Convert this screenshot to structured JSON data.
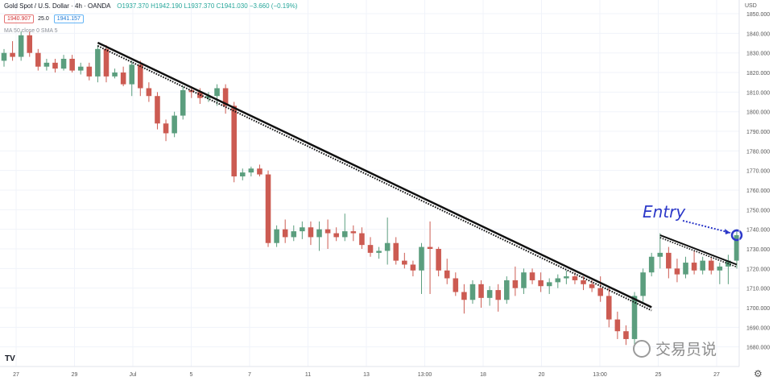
{
  "header": {
    "title": "Gold Spot / U.S. Dollar · 4h · OANDA",
    "ohlc": "O1937.370 H1942.190 L1937.370 C1941.030 −3.660 (−0.19%)",
    "sell_price": "1940.907",
    "spread": "25.0",
    "buy_price": "1941.157",
    "indicator": "MA 50 close 0 SMA 5"
  },
  "currency": "USD",
  "watermark": "交易员说",
  "annotation": "Entry",
  "colors": {
    "up": "#5b9e7e",
    "down": "#cc5b52",
    "trend": "#111111",
    "entry": "#2d39c9"
  },
  "chart_data": {
    "type": "candlestick",
    "ylim": [
      1670,
      1857
    ],
    "y_ticks": [
      "1850.000",
      "1840.000",
      "1830.000",
      "1820.000",
      "1810.000",
      "1800.000",
      "1790.000",
      "1780.000",
      "1770.000",
      "1760.000",
      "1750.000",
      "1740.000",
      "1730.000",
      "1720.000",
      "1710.000",
      "1700.000",
      "1690.000",
      "1680.000"
    ],
    "x_ticks": [
      "27",
      "29",
      "Jul",
      "5",
      "7",
      "11",
      "13",
      "13:00",
      "18",
      "20",
      "13:00",
      "25",
      "27"
    ],
    "candles": [
      [
        1826,
        1832,
        1823,
        1830
      ],
      [
        1830,
        1836,
        1826,
        1828
      ],
      [
        1828,
        1841,
        1826,
        1839
      ],
      [
        1839,
        1841,
        1828,
        1830
      ],
      [
        1830,
        1832,
        1821,
        1823
      ],
      [
        1823,
        1827,
        1821,
        1825
      ],
      [
        1825,
        1827,
        1820,
        1822
      ],
      [
        1822,
        1829,
        1821,
        1827
      ],
      [
        1827,
        1829,
        1820,
        1821
      ],
      [
        1821,
        1825,
        1819,
        1823
      ],
      [
        1823,
        1825,
        1816,
        1818
      ],
      [
        1818,
        1834,
        1815,
        1832
      ],
      [
        1832,
        1834,
        1815,
        1818
      ],
      [
        1818,
        1822,
        1817,
        1820
      ],
      [
        1820,
        1823,
        1813,
        1814
      ],
      [
        1814,
        1826,
        1808,
        1824
      ],
      [
        1824,
        1826,
        1808,
        1812
      ],
      [
        1812,
        1815,
        1805,
        1808
      ],
      [
        1808,
        1810,
        1791,
        1794
      ],
      [
        1794,
        1796,
        1785,
        1789
      ],
      [
        1789,
        1800,
        1787,
        1798
      ],
      [
        1798,
        1813,
        1796,
        1811
      ],
      [
        1811,
        1813,
        1807,
        1810
      ],
      [
        1810,
        1812,
        1804,
        1807
      ],
      [
        1807,
        1810,
        1805,
        1808
      ],
      [
        1808,
        1814,
        1803,
        1812
      ],
      [
        1812,
        1814,
        1799,
        1803
      ],
      [
        1803,
        1805,
        1764,
        1767
      ],
      [
        1767,
        1771,
        1765,
        1769
      ],
      [
        1769,
        1772,
        1767,
        1771
      ],
      [
        1771,
        1773,
        1767,
        1768
      ],
      [
        1768,
        1770,
        1731,
        1733
      ],
      [
        1733,
        1742,
        1731,
        1740
      ],
      [
        1740,
        1745,
        1733,
        1736
      ],
      [
        1736,
        1742,
        1734,
        1739
      ],
      [
        1739,
        1744,
        1735,
        1741
      ],
      [
        1741,
        1744,
        1732,
        1736
      ],
      [
        1736,
        1744,
        1729,
        1740
      ],
      [
        1740,
        1745,
        1730,
        1738
      ],
      [
        1738,
        1741,
        1734,
        1736
      ],
      [
        1736,
        1748,
        1734,
        1739
      ],
      [
        1739,
        1742,
        1734,
        1738
      ],
      [
        1738,
        1741,
        1730,
        1732
      ],
      [
        1732,
        1736,
        1726,
        1728
      ],
      [
        1728,
        1731,
        1725,
        1729
      ],
      [
        1729,
        1746,
        1722,
        1733
      ],
      [
        1733,
        1736,
        1722,
        1724
      ],
      [
        1724,
        1728,
        1720,
        1722
      ],
      [
        1722,
        1724,
        1716,
        1719
      ],
      [
        1719,
        1733,
        1707,
        1731
      ],
      [
        1731,
        1744,
        1707,
        1730
      ],
      [
        1730,
        1731,
        1716,
        1719
      ],
      [
        1719,
        1725,
        1712,
        1715
      ],
      [
        1715,
        1718,
        1706,
        1708
      ],
      [
        1708,
        1712,
        1697,
        1704
      ],
      [
        1704,
        1714,
        1702,
        1712
      ],
      [
        1712,
        1714,
        1700,
        1705
      ],
      [
        1705,
        1711,
        1701,
        1709
      ],
      [
        1709,
        1712,
        1698,
        1704
      ],
      [
        1704,
        1716,
        1702,
        1714
      ],
      [
        1714,
        1721,
        1706,
        1710
      ],
      [
        1710,
        1720,
        1707,
        1718
      ],
      [
        1718,
        1720,
        1712,
        1714
      ],
      [
        1714,
        1718,
        1708,
        1711
      ],
      [
        1711,
        1715,
        1707,
        1713
      ],
      [
        1713,
        1717,
        1710,
        1715
      ],
      [
        1715,
        1719,
        1712,
        1716
      ],
      [
        1716,
        1718,
        1712,
        1714
      ],
      [
        1714,
        1716,
        1709,
        1712
      ],
      [
        1712,
        1714,
        1708,
        1710
      ],
      [
        1710,
        1716,
        1703,
        1706
      ],
      [
        1706,
        1710,
        1690,
        1694
      ],
      [
        1694,
        1698,
        1684,
        1688
      ],
      [
        1688,
        1691,
        1681,
        1684
      ],
      [
        1684,
        1708,
        1681,
        1706
      ],
      [
        1706,
        1720,
        1703,
        1718
      ],
      [
        1718,
        1728,
        1716,
        1726
      ],
      [
        1726,
        1738,
        1720,
        1728
      ],
      [
        1728,
        1731,
        1715,
        1720
      ],
      [
        1720,
        1725,
        1713,
        1717
      ],
      [
        1717,
        1726,
        1715,
        1723
      ],
      [
        1723,
        1729,
        1717,
        1719
      ],
      [
        1719,
        1726,
        1717,
        1724
      ],
      [
        1724,
        1726,
        1717,
        1719
      ],
      [
        1719,
        1723,
        1712,
        1721
      ],
      [
        1721,
        1727,
        1712,
        1724
      ],
      [
        1724,
        1740,
        1720,
        1737
      ]
    ]
  }
}
